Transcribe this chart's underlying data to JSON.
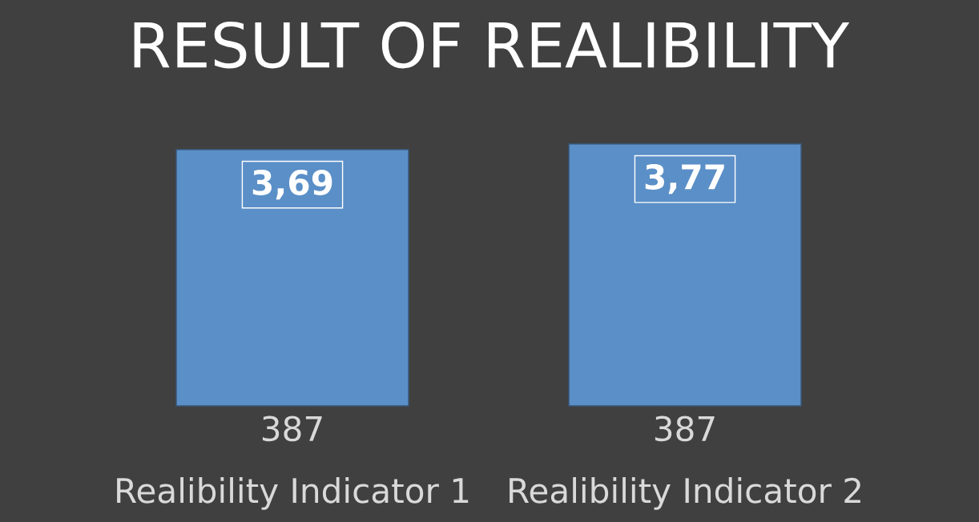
{
  "chart_data": {
    "type": "bar",
    "title": "RESULT OF REALIBILITY",
    "categories": [
      "Realibility Indicator 1",
      "Realibility Indicator 2"
    ],
    "values": [
      3.69,
      3.77
    ],
    "value_labels": [
      "3,69",
      "3,77"
    ],
    "color": "#5b8fc7",
    "annotations": [
      "387",
      "387"
    ]
  }
}
